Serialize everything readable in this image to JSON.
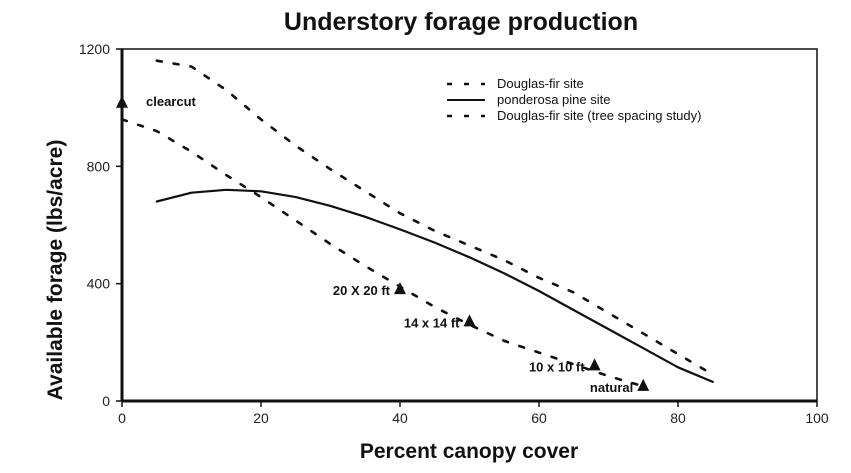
{
  "chart_data": {
    "type": "line",
    "title": "Understory forage production",
    "xlabel": "Percent canopy cover",
    "ylabel": "Available forage (lbs/acre)",
    "xlim": [
      0,
      100
    ],
    "ylim": [
      0,
      1200
    ],
    "xticks": [
      0,
      20,
      40,
      60,
      80,
      100
    ],
    "yticks": [
      0,
      400,
      800,
      1200
    ],
    "grid": false,
    "legend_position": "top-right",
    "series": [
      {
        "name": "Douglas-fir site",
        "style": "dashed",
        "color": "#111111",
        "x": [
          5,
          10,
          15,
          20,
          25,
          30,
          35,
          40,
          45,
          50,
          55,
          60,
          65,
          70,
          75,
          80,
          85
        ],
        "y": [
          1160,
          1140,
          1060,
          960,
          870,
          790,
          715,
          640,
          580,
          530,
          480,
          420,
          370,
          300,
          230,
          160,
          90
        ]
      },
      {
        "name": "ponderosa pine site",
        "style": "solid",
        "color": "#111111",
        "x": [
          5,
          10,
          15,
          20,
          25,
          30,
          35,
          40,
          45,
          50,
          55,
          60,
          65,
          70,
          75,
          80,
          85
        ],
        "y": [
          680,
          710,
          720,
          715,
          695,
          665,
          628,
          585,
          540,
          490,
          435,
          375,
          310,
          245,
          180,
          115,
          65
        ]
      },
      {
        "name": "Douglas-fir site (tree spacing study)",
        "style": "dashed",
        "color": "#111111",
        "x": [
          0,
          5,
          10,
          15,
          20,
          25,
          30,
          35,
          40,
          45,
          50,
          55,
          60,
          65,
          70,
          75
        ],
        "y": [
          960,
          920,
          850,
          770,
          695,
          615,
          535,
          460,
          390,
          320,
          260,
          205,
          165,
          125,
          85,
          50
        ]
      }
    ],
    "markers": [
      {
        "label": "clearcut",
        "x": 0,
        "y": 1020,
        "shape": "triangle"
      },
      {
        "label": "20 X 20 ft",
        "x": 40,
        "y": 385,
        "shape": "triangle"
      },
      {
        "label": "14 x 14 ft",
        "x": 50,
        "y": 275,
        "shape": "triangle"
      },
      {
        "label": "10 x 10 ft",
        "x": 68,
        "y": 125,
        "shape": "triangle"
      },
      {
        "label": "natural",
        "x": 75,
        "y": 55,
        "shape": "triangle"
      }
    ]
  }
}
